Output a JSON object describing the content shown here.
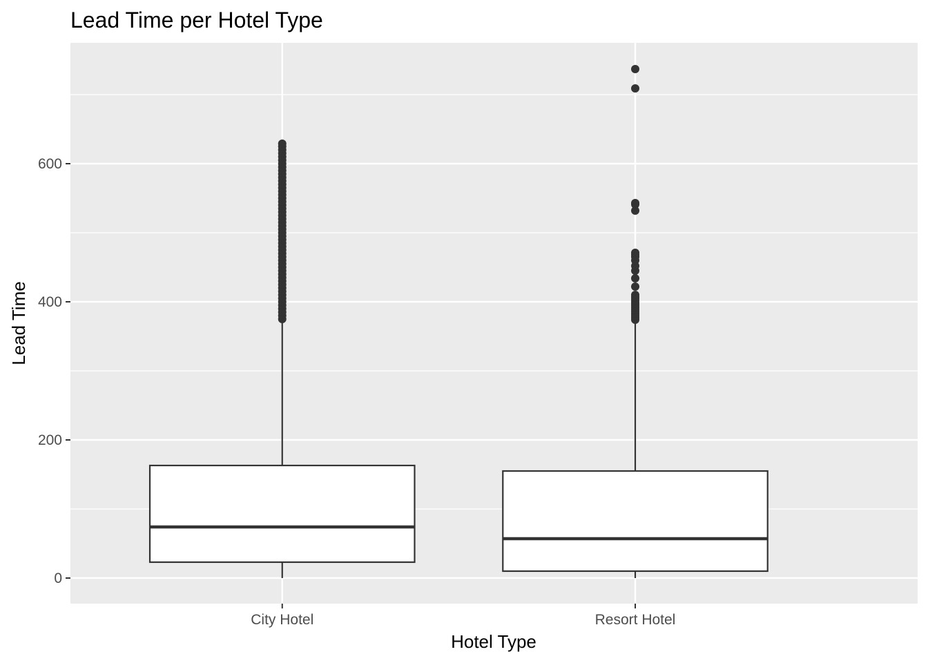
{
  "chart_data": {
    "type": "boxplot",
    "title": "Lead Time per Hotel Type",
    "xlabel": "Hotel Type",
    "ylabel": "Lead Time",
    "ylim": [
      -37,
      775
    ],
    "y_ticks": [
      0,
      200,
      400,
      600
    ],
    "grid": true,
    "categories": [
      "City Hotel",
      "Resort Hotel"
    ],
    "boxes": [
      {
        "name": "City Hotel",
        "min": 0,
        "q1": 23,
        "median": 74,
        "q3": 163,
        "max": 373,
        "outliers": [
          375,
          380,
          385,
          390,
          395,
          400,
          405,
          410,
          415,
          420,
          425,
          430,
          435,
          440,
          445,
          450,
          455,
          460,
          465,
          470,
          475,
          480,
          485,
          490,
          495,
          500,
          505,
          510,
          515,
          520,
          525,
          530,
          535,
          540,
          545,
          550,
          555,
          560,
          565,
          570,
          575,
          580,
          585,
          590,
          595,
          600,
          605,
          610,
          615,
          620,
          625,
          629
        ]
      },
      {
        "name": "Resort Hotel",
        "min": 0,
        "q1": 10,
        "median": 57,
        "q3": 155,
        "max": 372,
        "outliers": [
          374,
          377,
          380,
          383,
          386,
          389,
          392,
          395,
          398,
          401,
          404,
          407,
          410,
          422,
          434,
          445,
          452,
          460,
          465,
          468,
          471,
          532,
          541,
          543,
          709,
          737
        ]
      }
    ]
  },
  "colors": {
    "panel_background": "#ebebeb",
    "grid_major": "#ffffff",
    "box_fill": "#ffffff",
    "box_stroke": "#333333",
    "outlier": "#333333",
    "tick": "#333333"
  }
}
